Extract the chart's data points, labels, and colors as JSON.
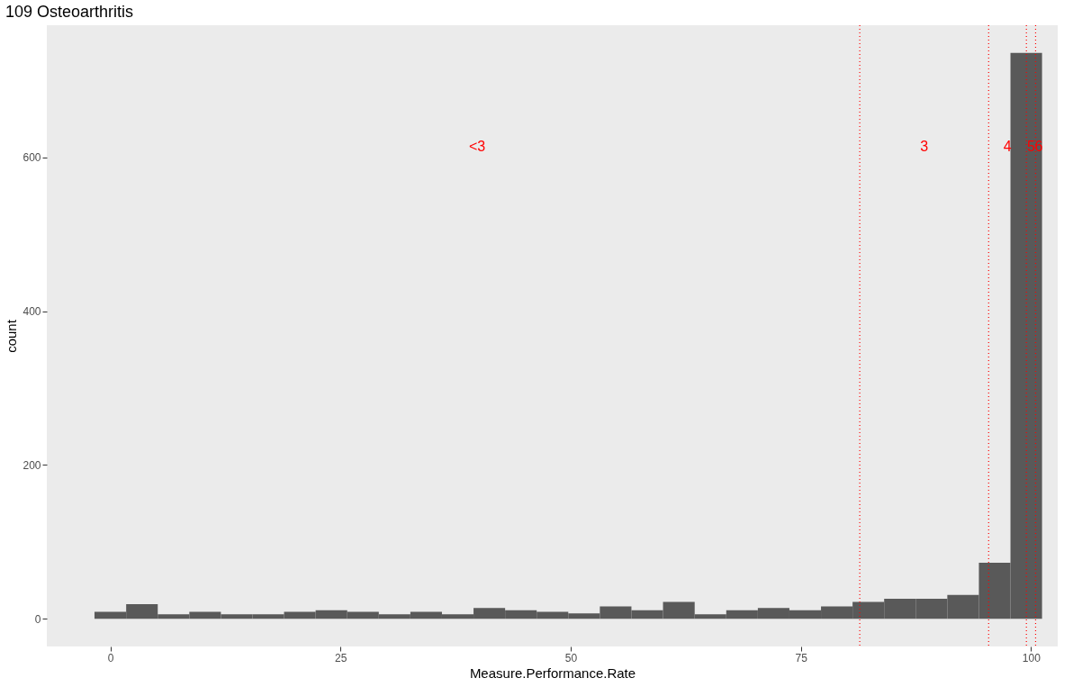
{
  "chart_data": {
    "type": "histogram",
    "title": "109 Osteoarthritis",
    "xlabel": "Measure.Performance.Rate",
    "ylabel": "count",
    "bins": [
      -1.72,
      1.72,
      5.15,
      8.58,
      12.01,
      15.44,
      18.87,
      22.3,
      25.73,
      29.16,
      32.59,
      36.02,
      39.45,
      42.88,
      46.31,
      49.74,
      53.17,
      56.6,
      60.03,
      63.47,
      66.9,
      70.33,
      73.76,
      77.19,
      80.62,
      84.05,
      87.48,
      90.91,
      94.34,
      97.77,
      101.2
    ],
    "values": [
      9,
      19,
      6,
      9,
      6,
      6,
      9,
      11,
      9,
      6,
      9,
      6,
      14,
      11,
      9,
      7,
      16,
      11,
      22,
      6,
      11,
      14,
      11,
      16,
      22,
      26,
      26,
      31,
      73,
      736
    ],
    "color": "#595959",
    "xlim": [
      -6.9,
      102.9
    ],
    "ylim": [
      -36,
      772
    ],
    "xticks": [
      0,
      25,
      50,
      75,
      100
    ],
    "yticks": [
      0,
      200,
      400,
      600
    ],
    "grid": false,
    "ref_lines": [
      {
        "axis": "x",
        "value": 81.4,
        "color": "#ff0000",
        "line_style": "dotted"
      },
      {
        "axis": "x",
        "value": 95.4,
        "color": "#ff0000",
        "line_style": "dotted"
      },
      {
        "axis": "x",
        "value": 99.5,
        "color": "#ff0000",
        "line_style": "dotted"
      },
      {
        "axis": "x",
        "value": 100.5,
        "color": "#ff0000",
        "line_style": "dotted"
      }
    ],
    "annotations": [
      "<3",
      "3",
      "4",
      "5",
      "6"
    ]
  }
}
